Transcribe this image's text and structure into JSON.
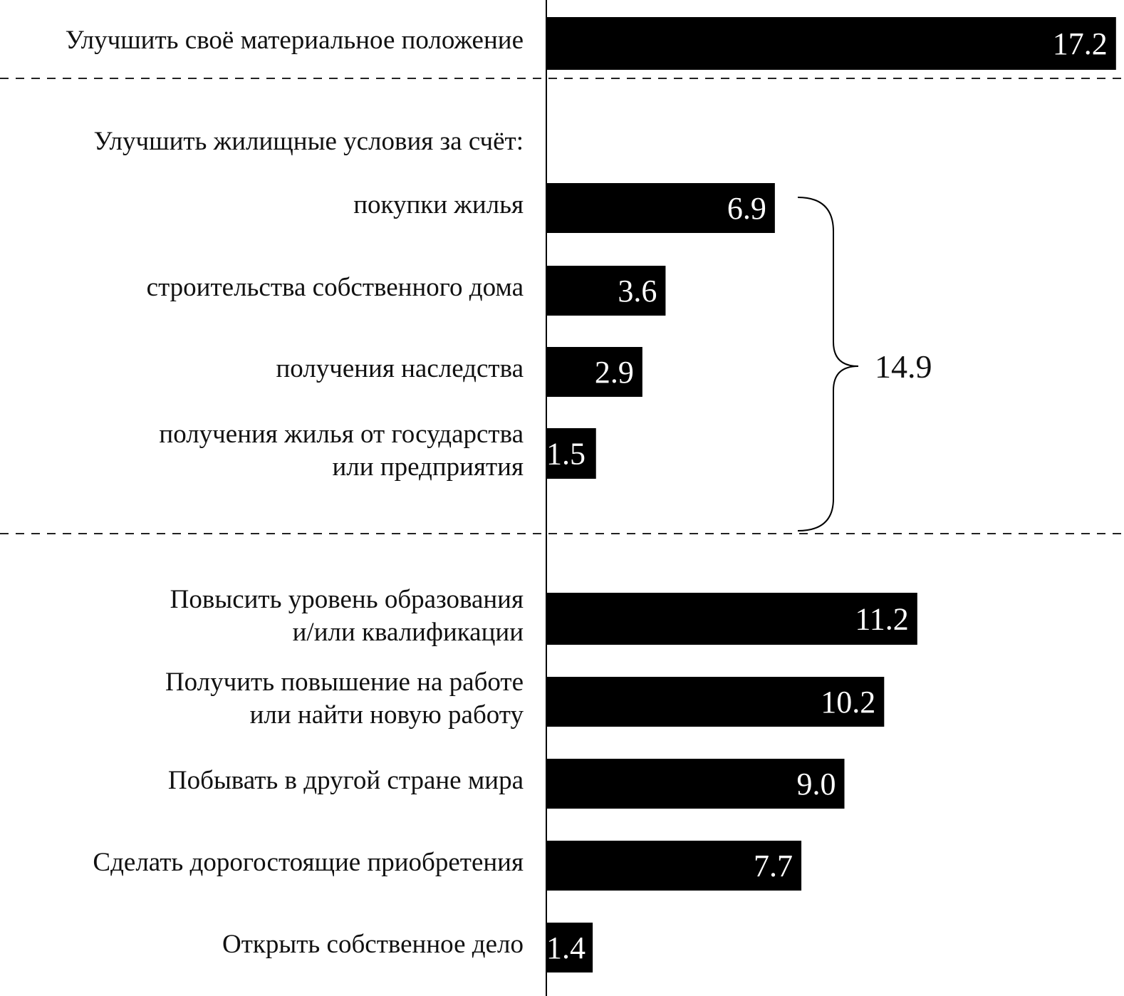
{
  "chart_data": {
    "type": "bar",
    "orientation": "horizontal",
    "categories": [
      "Улучшить своё материальное положение",
      "покупки жилья",
      "строительства собственного дома",
      "получения наследства",
      "получения жилья от государства или предприятия",
      "Повысить уровень образования и/или квалификации",
      "Получить повышение на работе или найти новую работу",
      "Побывать в другой стране мира",
      "Сделать дорогостоящие приобретения",
      "Открыть собственное дело"
    ],
    "label_lines": [
      [
        "Улучшить своё материальное положение"
      ],
      [
        "покупки жилья"
      ],
      [
        "строительства собственного дома"
      ],
      [
        "получения наследства"
      ],
      [
        "получения жилья от государства",
        "или предприятия"
      ],
      [
        "Повысить уровень образования",
        "и/или квалификации"
      ],
      [
        "Получить повышение на работе",
        "или найти новую работу"
      ],
      [
        "Побывать в другой стране мира"
      ],
      [
        "Сделать дорогостоящие приобретения"
      ],
      [
        "Открыть собственное дело"
      ]
    ],
    "values": [
      17.2,
      6.9,
      3.6,
      2.9,
      1.5,
      11.2,
      10.2,
      9.0,
      7.7,
      1.4
    ],
    "value_labels": [
      "17.2",
      "6.9",
      "3.6",
      "2.9",
      "1.5",
      "11.2",
      "10.2",
      "9.0",
      "7.7",
      "1.4"
    ],
    "group_heading": "Улучшить жилищные условия за счёт:",
    "group_total": "14.9",
    "bar_color": "#000000",
    "value_label_color": "#ffffff",
    "grid": false,
    "title": "",
    "xlabel": "",
    "ylabel": ""
  }
}
